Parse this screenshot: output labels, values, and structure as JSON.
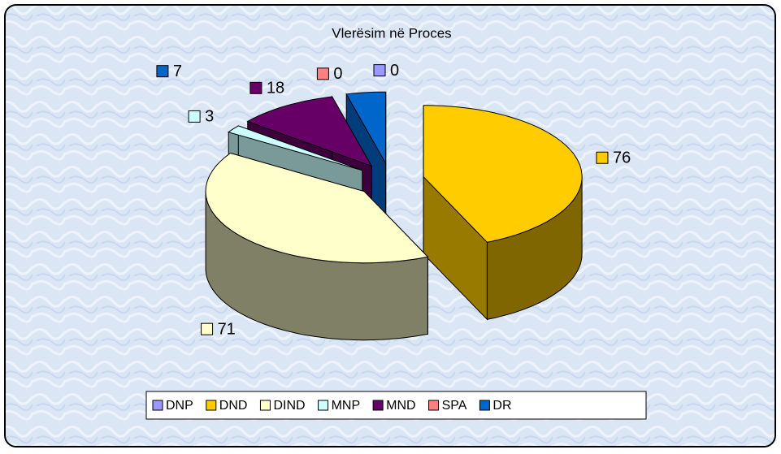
{
  "chart_data": {
    "type": "pie3d",
    "title": "Vlerësim në Proces",
    "categories": [
      "DNP",
      "DND",
      "DIND",
      "MNP",
      "MND",
      "SPA",
      "DR"
    ],
    "values": [
      0,
      76,
      71,
      3,
      18,
      0,
      7
    ],
    "colors": [
      "#9999ff",
      "#ffcc00",
      "#ffffcc",
      "#ccffff",
      "#660066",
      "#ff8080",
      "#0066cc"
    ],
    "legend": "bottom"
  }
}
